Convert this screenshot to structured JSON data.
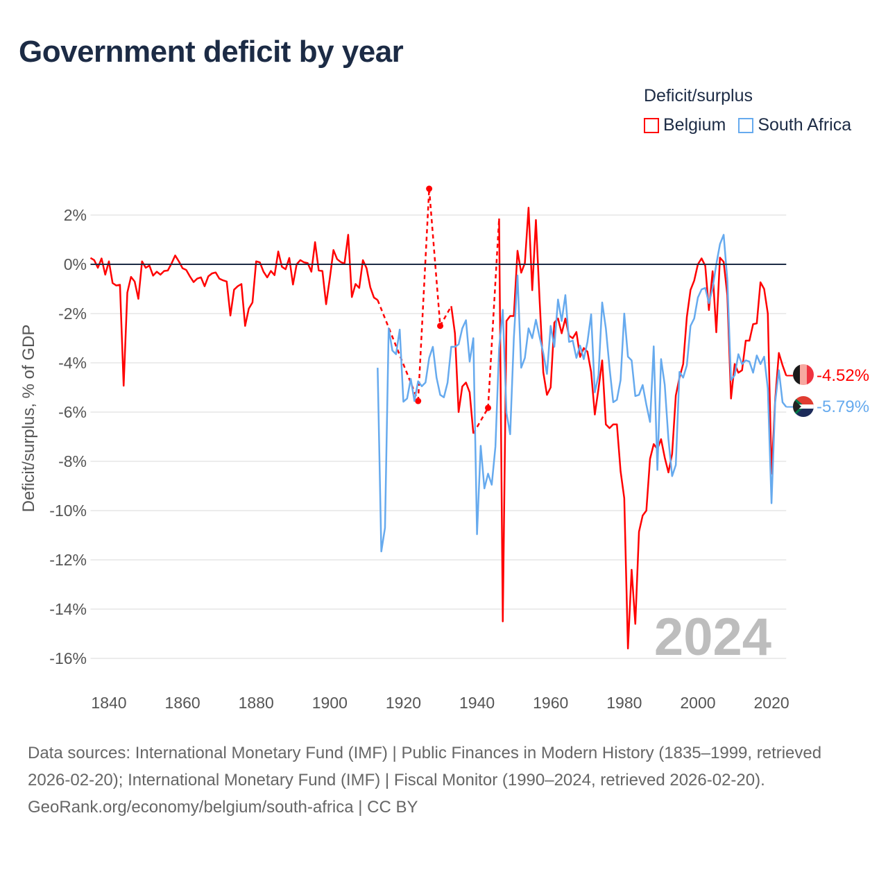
{
  "title": "Government deficit by year",
  "legend": {
    "title": "Deficit/surplus",
    "items": [
      {
        "label": "Belgium",
        "color": "#ff0000"
      },
      {
        "label": "South Africa",
        "color": "#66aaee"
      }
    ]
  },
  "watermark_year": "2024",
  "end_labels": {
    "belgium": "-4.52%",
    "south_africa": "-5.79%"
  },
  "footer": {
    "sources": "Data sources: International Monetary Fund (IMF) | Public Finances in Modern History (1835–1999, retrieved 2026-02-20); International Monetary Fund (IMF) | Fiscal Monitor (1990–2024, retrieved 2026-02-20).",
    "credit": "GeoRank.org/economy/belgium/south-africa | CC BY"
  },
  "chart_data": {
    "type": "line",
    "title": "Government deficit by year",
    "xlabel": "",
    "ylabel": "Deficit/surplus, % of GDP",
    "xlim": [
      1835,
      2024
    ],
    "ylim": [
      -17,
      3.5
    ],
    "x_ticks": [
      "1840",
      "1860",
      "1880",
      "1900",
      "1920",
      "1940",
      "1960",
      "1980",
      "2000",
      "2020"
    ],
    "y_ticks": [
      "2%",
      "0%",
      "-2%",
      "-4%",
      "-6%",
      "-8%",
      "-10%",
      "-12%",
      "-14%",
      "-16%"
    ],
    "y_tick_values": [
      2,
      0,
      -2,
      -4,
      -6,
      -8,
      -10,
      -12,
      -14,
      -16
    ],
    "grid": true,
    "legend_position": "top-right",
    "series": [
      {
        "name": "Belgium",
        "color": "#ff0000",
        "start_year": 1835,
        "values": [
          0.26,
          0.17,
          -0.14,
          0.24,
          -0.42,
          0.12,
          -0.76,
          -0.86,
          -0.83,
          -4.93,
          -1.15,
          -0.51,
          -0.7,
          -1.4,
          0.12,
          -0.14,
          -0.05,
          -0.46,
          -0.3,
          -0.42,
          -0.27,
          -0.25,
          0.03,
          0.36,
          0.12,
          -0.16,
          -0.23,
          -0.49,
          -0.72,
          -0.58,
          -0.53,
          -0.89,
          -0.49,
          -0.37,
          -0.33,
          -0.58,
          -0.65,
          -0.7,
          -2.08,
          -1.03,
          -0.89,
          -0.8,
          -2.5,
          -1.8,
          -1.55,
          0.12,
          0.08,
          -0.3,
          -0.53,
          -0.27,
          -0.44,
          0.52,
          -0.1,
          -0.2,
          0.26,
          -0.82,
          0,
          0.17,
          0.08,
          0.05,
          -0.3,
          0.9,
          -0.25,
          -0.27,
          -1.62,
          -0.58,
          0.58,
          0.21,
          0.09,
          0.03,
          1.2,
          -1.33,
          -0.8,
          -0.96,
          0.17,
          -0.16,
          -0.93,
          -1.35,
          -1.45,
          null,
          null,
          null,
          null,
          null,
          null,
          null,
          null,
          null,
          null,
          -5.55,
          null,
          null,
          3.07,
          null,
          null,
          -2.5,
          null,
          null,
          -1.7,
          -2.8,
          -6.0,
          -4.96,
          -4.8,
          -5.2,
          -6.87,
          null,
          null,
          null,
          -5.83,
          null,
          null,
          1.86,
          -14.5,
          -2.3,
          -2.1,
          -2.1,
          0.55,
          -0.34,
          0.05,
          2.3,
          -1.05,
          1.8,
          -1.45,
          -4.38,
          -5.3,
          -5.0,
          -2.37,
          -2.2,
          -2.8,
          -2.2,
          -2.9,
          -3.0,
          -2.75,
          -3.76,
          -3.4,
          -3.55,
          -4.37,
          -6.1,
          -5.05,
          -3.9,
          -6.5,
          -6.65,
          -6.5,
          -6.5,
          -8.4,
          -9.5,
          -15.6,
          -12.4,
          -14.6,
          -10.86,
          -10.2,
          -10.0,
          -7.9,
          -7.3,
          -7.5,
          -7.1,
          -7.85,
          -8.45,
          -7.7,
          -5.33,
          -4.6,
          -4.05,
          -2.14,
          -1.04,
          -0.66,
          0.0,
          0.24,
          -0.06,
          -1.86,
          -0.28,
          -2.76,
          0.27,
          0.1,
          -1.25,
          -5.45,
          -4.05,
          -4.4,
          -4.3,
          -3.1,
          -3.1,
          -2.43,
          -2.4,
          -0.73,
          -1.0,
          -2.0,
          -8.5,
          -5.5,
          -3.6,
          -4.1,
          -4.52
        ]
      },
      {
        "name": "South Africa",
        "color": "#66aaee",
        "start_year": 1913,
        "values": [
          -4.2,
          -11.66,
          -10.7,
          -2.6,
          -3.5,
          -3.65,
          -2.65,
          -5.58,
          -5.45,
          -4.65,
          -5.55,
          -4.75,
          -4.95,
          -4.8,
          -3.8,
          -3.35,
          -4.6,
          -5.3,
          -5.4,
          -4.8,
          -3.35,
          -3.35,
          -3.25,
          -2.6,
          -2.27,
          -3.95,
          -3.0,
          -10.96,
          -7.37,
          -9.1,
          -8.5,
          -8.95,
          -7.4,
          -3.4,
          -1.85,
          -6.03,
          -6.9,
          -3.0,
          -0.45,
          -4.2,
          -3.8,
          -2.6,
          -3.0,
          -2.25,
          -2.95,
          -3.6,
          -4.45,
          -2.5,
          -3.35,
          -1.43,
          -2.3,
          -1.25,
          -3.15,
          -3.1,
          -3.8,
          -3.3,
          -3.85,
          -3.15,
          -2.03,
          -5.2,
          -4.5,
          -1.55,
          -2.6,
          -4.2,
          -5.6,
          -5.5,
          -4.7,
          -2.0,
          -3.75,
          -3.9,
          -5.35,
          -5.3,
          -4.9,
          -5.7,
          -6.4,
          -3.33,
          -8.35,
          -3.85,
          -4.9,
          -7.1,
          -8.6,
          -8.15,
          -4.37,
          -4.6,
          -4.1,
          -2.5,
          -2.2,
          -1.35,
          -1.02,
          -0.96,
          -1.58,
          -0.96,
          0.0,
          0.82,
          1.2,
          -0.62,
          -4.7,
          -4.5,
          -3.65,
          -4.05,
          -3.9,
          -3.95,
          -4.4,
          -3.7,
          -4.05,
          -3.75,
          -5.05,
          -9.7,
          -5.6,
          -4.3,
          -5.6,
          -5.79
        ]
      }
    ]
  }
}
